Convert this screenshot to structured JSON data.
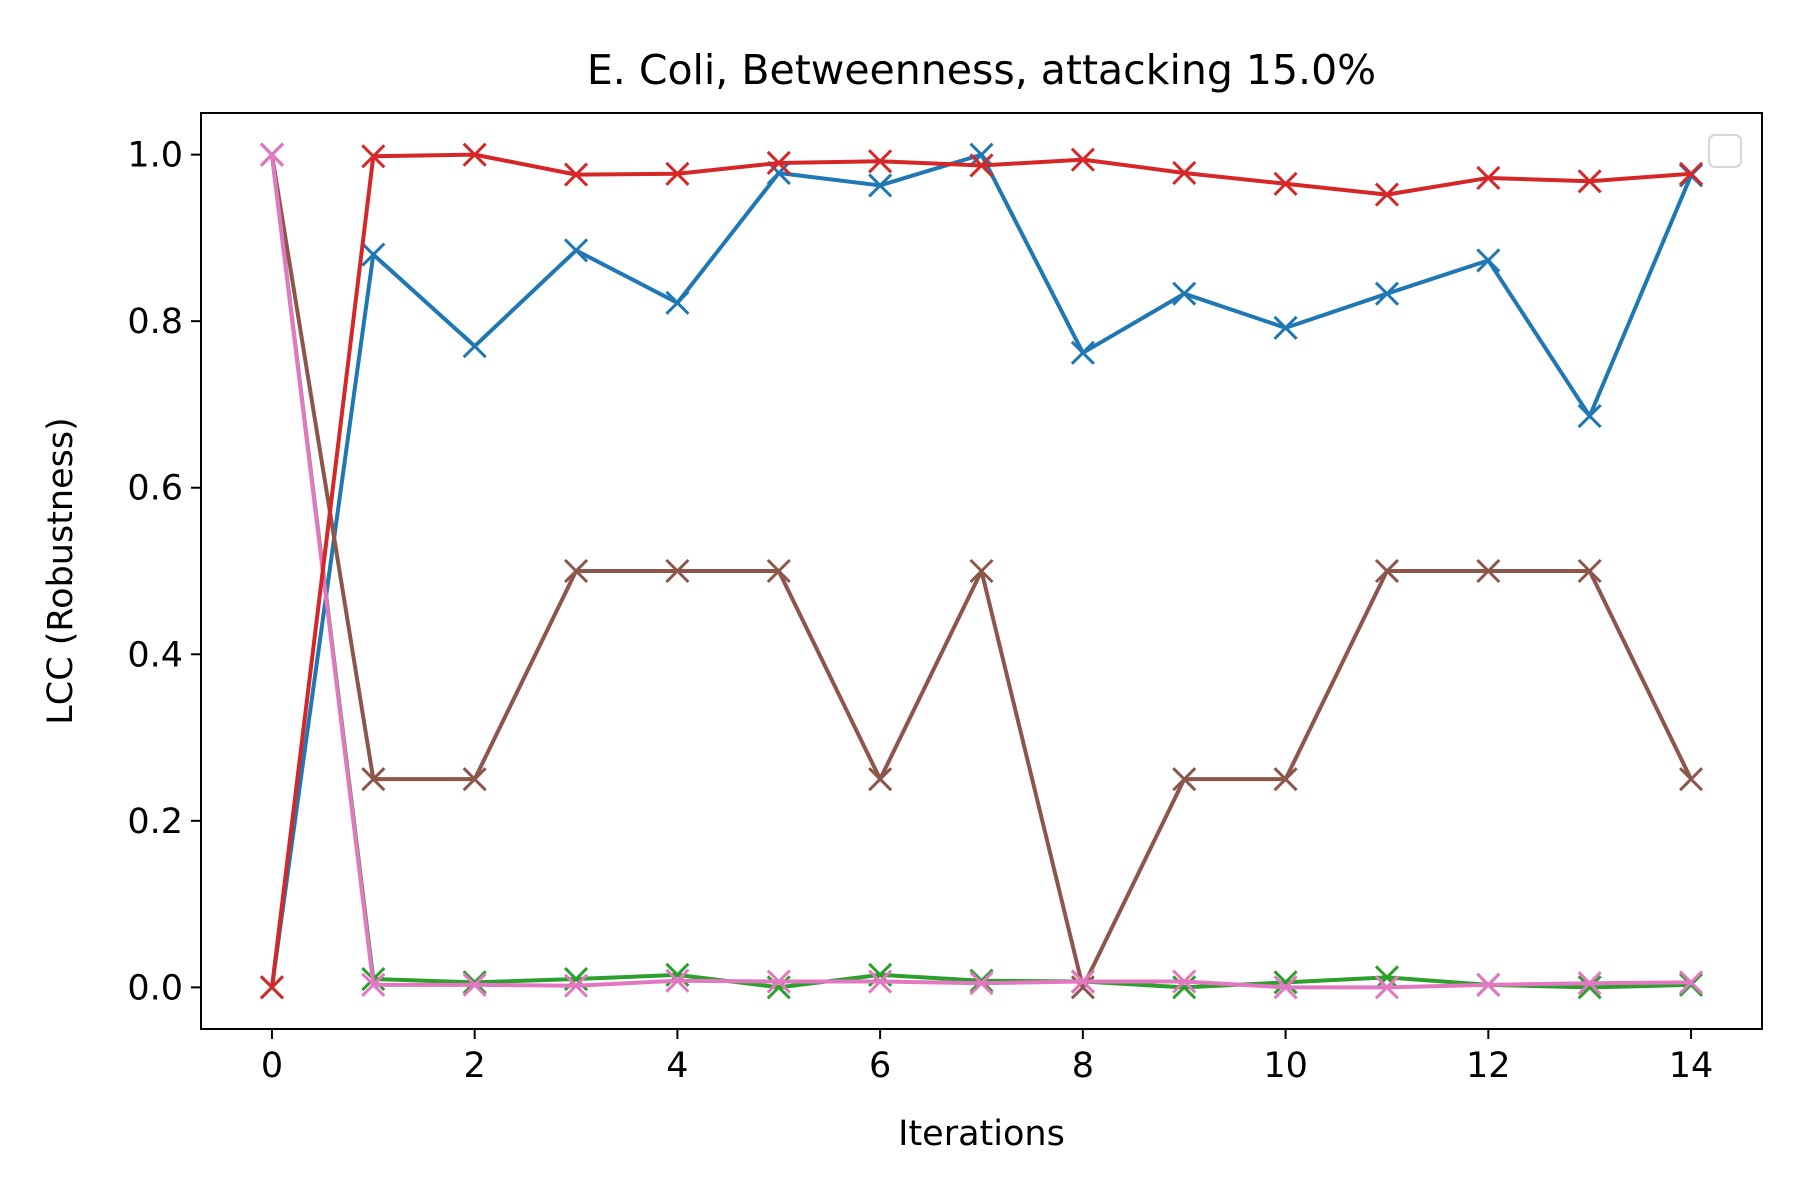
{
  "chart_data": {
    "type": "line",
    "title": "E. Coli, Betweenness, attacking 15.0%",
    "xlabel": "Iterations",
    "ylabel": "LCC (Robustness)",
    "xlim": [
      -0.7,
      14.7
    ],
    "ylim": [
      -0.05,
      1.05
    ],
    "xticks": [
      0,
      2,
      4,
      6,
      8,
      10,
      12,
      14
    ],
    "xtick_labels": [
      "0",
      "2",
      "4",
      "6",
      "8",
      "10",
      "12",
      "14"
    ],
    "yticks": [
      0.0,
      0.2,
      0.4,
      0.6,
      0.8,
      1.0
    ],
    "ytick_labels": [
      "0.0",
      "0.2",
      "0.4",
      "0.6",
      "0.8",
      "1.0"
    ],
    "grid": false,
    "legend": {
      "location": "upper right",
      "entries": []
    },
    "marker": "x",
    "x": [
      0,
      1,
      2,
      3,
      4,
      5,
      6,
      7,
      8,
      9,
      10,
      11,
      12,
      13,
      14
    ],
    "series": [
      {
        "color": "#1f77b4",
        "values": [
          0.0,
          0.88,
          0.77,
          0.885,
          0.822,
          0.978,
          0.963,
          1.0,
          0.762,
          0.833,
          0.792,
          0.833,
          0.873,
          0.686,
          0.975
        ]
      },
      {
        "color": "#2ca02c",
        "values": [
          1.0,
          0.01,
          0.006,
          0.01,
          0.015,
          0.0,
          0.015,
          0.008,
          0.007,
          0.0,
          0.006,
          0.012,
          0.003,
          0.0,
          0.003
        ]
      },
      {
        "color": "#8c564b",
        "values": [
          1.0,
          0.25,
          0.25,
          0.5,
          0.5,
          0.5,
          0.25,
          0.5,
          0.0,
          0.25,
          0.25,
          0.5,
          0.5,
          0.5,
          0.25
        ]
      },
      {
        "color": "#e377c2",
        "values": [
          1.0,
          0.003,
          0.003,
          0.002,
          0.008,
          0.007,
          0.007,
          0.005,
          0.007,
          0.007,
          0.0,
          0.0,
          0.003,
          0.005,
          0.006
        ]
      },
      {
        "color": "#d62728",
        "values": [
          0.0,
          0.998,
          1.0,
          0.976,
          0.977,
          0.99,
          0.992,
          0.987,
          0.994,
          0.978,
          0.965,
          0.952,
          0.972,
          0.968,
          0.977
        ]
      }
    ]
  }
}
